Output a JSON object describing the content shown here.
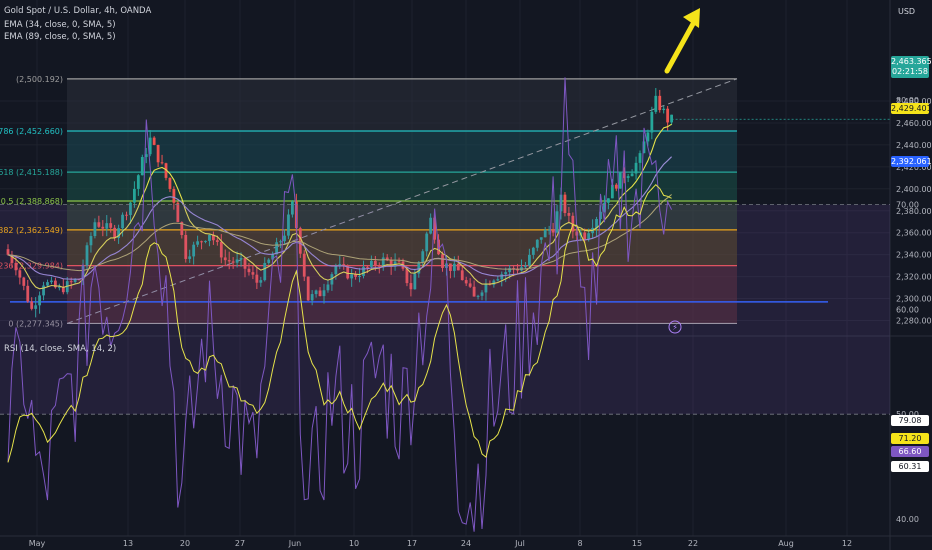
{
  "header": {
    "symbol": "Gold Spot / U.S. Dollar, 4h, OANDA",
    "ema1": "EMA (34, close, 0, SMA, 5)",
    "ema2": "EMA (89, close, 0, SMA, 5)",
    "currency": "USD"
  },
  "rsi_label": "RSI (14, close, SMA, 14, 2)",
  "badges": {
    "last_price": "2,463.365",
    "countdown": "02:21:58",
    "ema34": "2,429.401",
    "ema89": "2,392.061",
    "rsi1": "79.08",
    "rsi2": "71.20",
    "rsi3": "66.60",
    "rsi4": "60.31"
  },
  "colors": {
    "background": "#131722",
    "up": "#26a69a",
    "down": "#ef5350",
    "arrow": "#f5e31a",
    "ema34": "#e6e34a",
    "ema89": "#9b8ed6",
    "rsi": "#7e57c2"
  },
  "chart_data": [
    {
      "type": "candlestick",
      "title": "Gold Spot / U.S. Dollar, 4h, OANDA",
      "x_ticks": [
        "May",
        "13",
        "20",
        "27",
        "Jun",
        "10",
        "17",
        "24",
        "Jul",
        "8",
        "15",
        "22",
        "Aug",
        "12"
      ],
      "y_ticks": [
        2280,
        2300,
        2320,
        2340,
        2360,
        2380,
        2400,
        2420,
        2440,
        2460,
        2480
      ],
      "y_tick_labels": [
        "2,280.000",
        "2,300.000",
        "2,320.000",
        "2,340.000",
        "2,360.000",
        "2,380.000",
        "2,400.000",
        "2,420.000",
        "2,440.000",
        "2,460.000",
        "2,480.000"
      ],
      "ylim": [
        2272,
        2506
      ],
      "fib_levels": [
        {
          "label": "0.786 (2,452.660)",
          "value": 2452.66,
          "color": "#22c1c3"
        },
        {
          "label": "0.618 (2,415.188)",
          "value": 2415.188,
          "color": "#26a69a"
        },
        {
          "label": "0.5 (2,388.868)",
          "value": 2388.868,
          "color": "#8bc34a"
        },
        {
          "label": "0.382 (2,362.549)",
          "value": 2362.549,
          "color": "#ffb300"
        },
        {
          "label": "0.236 (2,329.984)",
          "value": 2329.984,
          "color": "#ef5350"
        },
        {
          "label": "0 (2,277.345)",
          "value": 2277.345,
          "color": "#9e9e9e"
        },
        {
          "label": "(2,500.192)",
          "value": 2500.192,
          "color": "#9e9e9e"
        }
      ],
      "support_level": 2297,
      "anchors": [
        {
          "t": 0,
          "p": 2345
        },
        {
          "t": 3,
          "p": 2330
        },
        {
          "t": 7,
          "p": 2290
        },
        {
          "t": 10,
          "p": 2315
        },
        {
          "t": 14,
          "p": 2308
        },
        {
          "t": 19,
          "p": 2318
        },
        {
          "t": 23,
          "p": 2370
        },
        {
          "t": 28,
          "p": 2360
        },
        {
          "t": 32,
          "p": 2388
        },
        {
          "t": 35,
          "p": 2425
        },
        {
          "t": 37,
          "p": 2445
        },
        {
          "t": 40,
          "p": 2420
        },
        {
          "t": 43,
          "p": 2390
        },
        {
          "t": 46,
          "p": 2340
        },
        {
          "t": 49,
          "p": 2350
        },
        {
          "t": 52,
          "p": 2360
        },
        {
          "t": 56,
          "p": 2335
        },
        {
          "t": 60,
          "p": 2332
        },
        {
          "t": 64,
          "p": 2315
        },
        {
          "t": 68,
          "p": 2340
        },
        {
          "t": 71,
          "p": 2360
        },
        {
          "t": 73,
          "p": 2385
        },
        {
          "t": 75,
          "p": 2345
        },
        {
          "t": 77,
          "p": 2300
        },
        {
          "t": 80,
          "p": 2305
        },
        {
          "t": 84,
          "p": 2330
        },
        {
          "t": 88,
          "p": 2320
        },
        {
          "t": 92,
          "p": 2328
        },
        {
          "t": 96,
          "p": 2335
        },
        {
          "t": 100,
          "p": 2330
        },
        {
          "t": 103,
          "p": 2310
        },
        {
          "t": 106,
          "p": 2345
        },
        {
          "t": 108,
          "p": 2372
        },
        {
          "t": 111,
          "p": 2332
        },
        {
          "t": 115,
          "p": 2325
        },
        {
          "t": 119,
          "p": 2300
        },
        {
          "t": 121,
          "p": 2310
        },
        {
          "t": 124,
          "p": 2320
        },
        {
          "t": 128,
          "p": 2326
        },
        {
          "t": 132,
          "p": 2330
        },
        {
          "t": 136,
          "p": 2358
        },
        {
          "t": 139,
          "p": 2365
        },
        {
          "t": 141,
          "p": 2390
        },
        {
          "t": 144,
          "p": 2362
        },
        {
          "t": 147,
          "p": 2358
        },
        {
          "t": 150,
          "p": 2375
        },
        {
          "t": 153,
          "p": 2395
        },
        {
          "t": 156,
          "p": 2410
        },
        {
          "t": 159,
          "p": 2418
        },
        {
          "t": 161,
          "p": 2428
        },
        {
          "t": 163,
          "p": 2455
        },
        {
          "t": 165,
          "p": 2480
        },
        {
          "t": 167,
          "p": 2470
        },
        {
          "t": 168,
          "p": 2463
        }
      ]
    },
    {
      "type": "line",
      "title": "RSI (14, close, SMA, 14, 2)",
      "y_ticks": [
        40,
        50,
        60,
        70,
        80,
        90,
        100,
        110
      ],
      "y_tick_labels": [
        "40.00",
        "50.00",
        "60.00",
        "70.00",
        "80.00",
        "90.00",
        "100.00",
        "110.00"
      ],
      "ylim": [
        37,
        111
      ],
      "levels": [
        70,
        50
      ],
      "rsi_anchors": [
        {
          "t": 0,
          "v": 48
        },
        {
          "t": 4,
          "v": 55
        },
        {
          "t": 8,
          "v": 42
        },
        {
          "t": 14,
          "v": 50
        },
        {
          "t": 18,
          "v": 55
        },
        {
          "t": 22,
          "v": 65
        },
        {
          "t": 26,
          "v": 60
        },
        {
          "t": 32,
          "v": 68
        },
        {
          "t": 36,
          "v": 78
        },
        {
          "t": 40,
          "v": 62
        },
        {
          "t": 44,
          "v": 42
        },
        {
          "t": 50,
          "v": 58
        },
        {
          "t": 56,
          "v": 52
        },
        {
          "t": 62,
          "v": 45
        },
        {
          "t": 68,
          "v": 62
        },
        {
          "t": 72,
          "v": 70
        },
        {
          "t": 76,
          "v": 40
        },
        {
          "t": 82,
          "v": 52
        },
        {
          "t": 88,
          "v": 48
        },
        {
          "t": 94,
          "v": 55
        },
        {
          "t": 100,
          "v": 50
        },
        {
          "t": 106,
          "v": 62
        },
        {
          "t": 110,
          "v": 66
        },
        {
          "t": 114,
          "v": 46
        },
        {
          "t": 118,
          "v": 42
        },
        {
          "t": 122,
          "v": 50
        },
        {
          "t": 128,
          "v": 55
        },
        {
          "t": 134,
          "v": 62
        },
        {
          "t": 139,
          "v": 68
        },
        {
          "t": 141,
          "v": 82
        },
        {
          "t": 145,
          "v": 58
        },
        {
          "t": 150,
          "v": 65
        },
        {
          "t": 155,
          "v": 72
        },
        {
          "t": 160,
          "v": 70
        },
        {
          "t": 164,
          "v": 79
        },
        {
          "t": 166,
          "v": 70
        },
        {
          "t": 168,
          "v": 66.6
        }
      ]
    }
  ]
}
